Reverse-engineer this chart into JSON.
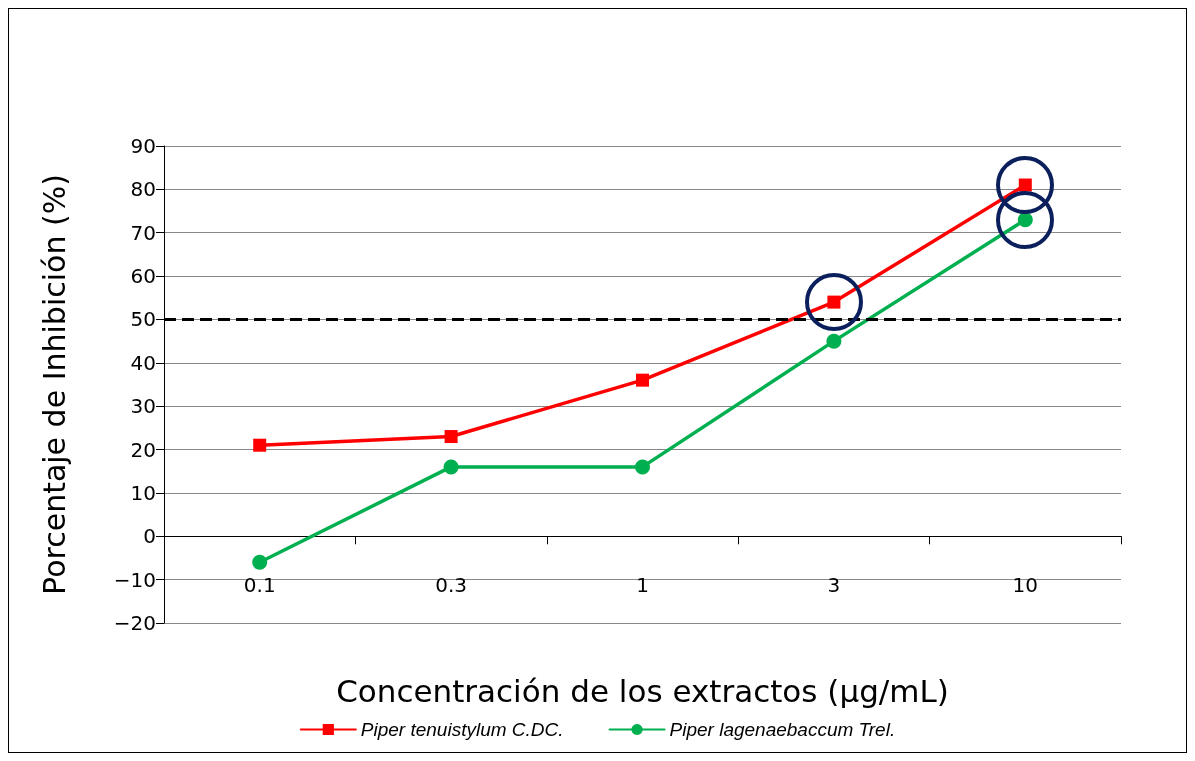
{
  "chart_data": {
    "type": "line",
    "xlabel": "Concentración de los extractos (µg/mL)",
    "ylabel": "Porcentaje de Inhibición (%)",
    "categories": [
      "0.1",
      "0.3",
      "1",
      "3",
      "10"
    ],
    "series": [
      {
        "name": "Piper tenuistylum C.DC.",
        "color": "#ff0000",
        "marker": "square",
        "values": [
          21,
          23,
          36,
          54,
          81
        ]
      },
      {
        "name": "Piper lagenaebaccum Trel.",
        "color": "#00b050",
        "marker": "circle",
        "values": [
          -6,
          16,
          16,
          45,
          73
        ]
      }
    ],
    "ylim": [
      -20,
      90
    ],
    "yticks": [
      -20,
      -10,
      0,
      10,
      20,
      30,
      40,
      50,
      60,
      70,
      80,
      90
    ],
    "grid": "y",
    "legend": "bottom",
    "line_style": "solid",
    "ref_lines": [
      {
        "axis": "y",
        "value": 50,
        "label": null,
        "color": "#000000",
        "line_style": "dashed"
      }
    ]
  }
}
